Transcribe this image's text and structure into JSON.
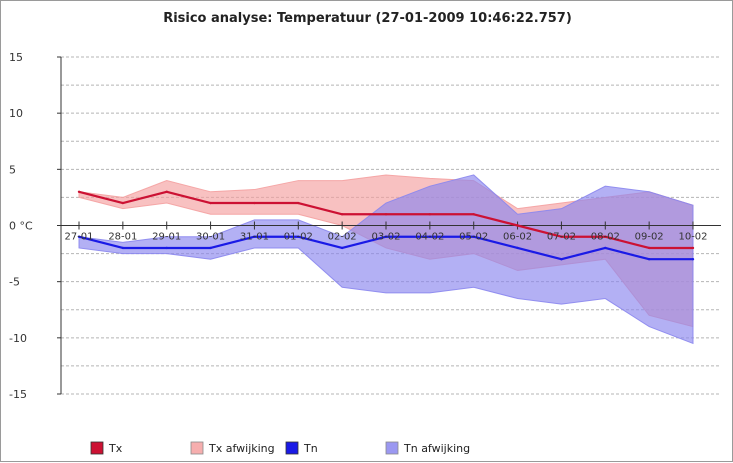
{
  "chart_data": {
    "type": "line",
    "title": "Risico analyse: Temperatuur (27-01-2009 10:46:22.757)",
    "xlabel": "",
    "ylabel": "",
    "categories": [
      "27-01",
      "28-01",
      "29-01",
      "30-01",
      "31-01",
      "01-02",
      "02-02",
      "03-02",
      "04-02",
      "05-02",
      "06-02",
      "07-02",
      "08-02",
      "09-02",
      "10-02"
    ],
    "ylim": [
      -15,
      15
    ],
    "yticks": [
      15,
      10,
      5,
      0,
      -5,
      -10,
      -15
    ],
    "ytick_labels": [
      "15",
      "10",
      "5",
      "0 °C",
      "-5",
      "-10",
      "-15"
    ],
    "grid": "horizontal dashed",
    "legend_position": "bottom",
    "series": [
      {
        "name": "Tx",
        "kind": "line",
        "color": "#cc1133",
        "values": [
          3,
          2,
          3,
          2,
          2,
          2,
          1,
          1,
          1,
          1,
          0,
          -1,
          -1,
          -2,
          -2
        ]
      },
      {
        "name": "Tn",
        "kind": "line",
        "color": "#1a1ae6",
        "values": [
          -1,
          -2,
          -2,
          -2,
          -1,
          -1,
          -2,
          -1,
          -1,
          -1,
          -2,
          -3,
          -2,
          -3,
          -3
        ]
      },
      {
        "name": "Tx afwijking",
        "kind": "band",
        "color": "#f4a0a0",
        "upper": [
          3,
          2.5,
          4,
          3,
          3.2,
          4,
          4,
          4.5,
          4.2,
          4,
          1.5,
          2,
          2.5,
          3,
          1.8
        ],
        "lower": [
          2.5,
          1.5,
          2,
          1,
          1,
          1,
          0,
          -2,
          -3,
          -2.5,
          -4,
          -3.5,
          -3,
          -8,
          -9
        ]
      },
      {
        "name": "Tn afwijking",
        "kind": "band",
        "color": "#8a86ee",
        "upper": [
          -1,
          -1.5,
          -1,
          -1,
          0.5,
          0.5,
          -1,
          2,
          3.5,
          4.5,
          1,
          1.5,
          3.5,
          3,
          1.8
        ],
        "lower": [
          -2,
          -2.5,
          -2.5,
          -3,
          -2,
          -2,
          -5.5,
          -6,
          -6,
          -5.5,
          -6.5,
          -7,
          -6.5,
          -9,
          -10.5
        ]
      }
    ]
  }
}
